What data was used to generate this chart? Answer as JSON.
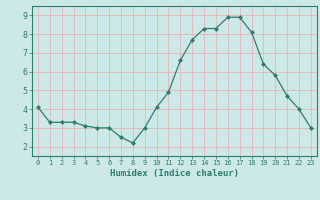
{
  "x": [
    0,
    1,
    2,
    3,
    4,
    5,
    6,
    7,
    8,
    9,
    10,
    11,
    12,
    13,
    14,
    15,
    16,
    17,
    18,
    19,
    20,
    21,
    22,
    23
  ],
  "y": [
    4.1,
    3.3,
    3.3,
    3.3,
    3.1,
    3.0,
    3.0,
    2.5,
    2.2,
    3.0,
    4.1,
    4.9,
    6.6,
    7.7,
    8.3,
    8.3,
    8.9,
    8.9,
    8.1,
    6.4,
    5.8,
    4.7,
    4.0,
    3.0
  ],
  "line_color": "#2e7d6e",
  "marker": "D",
  "marker_size": 2.0,
  "bg_color": "#cce9e7",
  "grid_color": "#e8b4b4",
  "axis_color": "#2e7d6e",
  "tick_color": "#2e7d6e",
  "xlabel": "Humidex (Indice chaleur)",
  "xlim": [
    -0.5,
    23.5
  ],
  "ylim": [
    1.5,
    9.5
  ],
  "yticks": [
    2,
    3,
    4,
    5,
    6,
    7,
    8,
    9
  ],
  "xticks": [
    0,
    1,
    2,
    3,
    4,
    5,
    6,
    7,
    8,
    9,
    10,
    11,
    12,
    13,
    14,
    15,
    16,
    17,
    18,
    19,
    20,
    21,
    22,
    23
  ]
}
